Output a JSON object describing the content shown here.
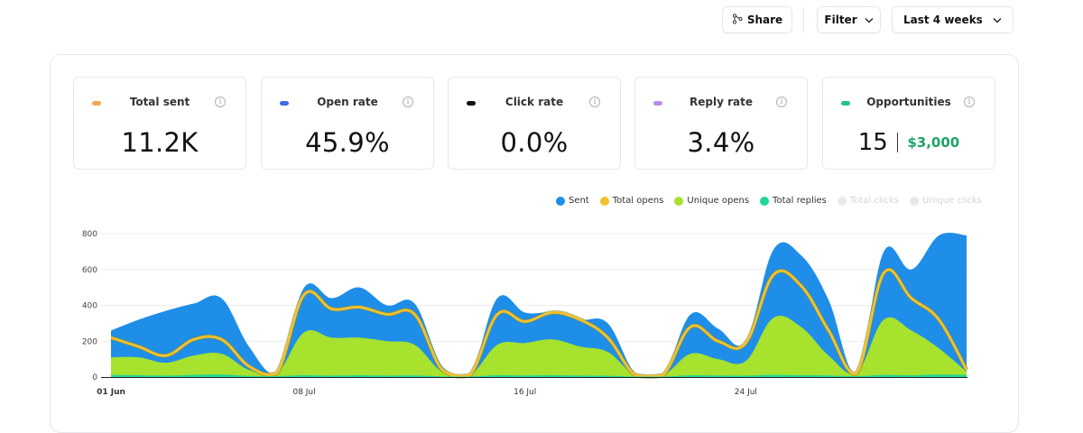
{
  "toolbar": {
    "share_label": "Share",
    "filter_label": "Filter",
    "range_label": "Last 4 weeks"
  },
  "cards": [
    {
      "label": "Total sent",
      "value": "11.2K",
      "color": "#f0a94a"
    },
    {
      "label": "Open rate",
      "value": "45.9%",
      "color": "#3b6fe0"
    },
    {
      "label": "Click rate",
      "value": "0.0%",
      "color": "#111111"
    },
    {
      "label": "Reply rate",
      "value": "3.4%",
      "color": "#b98ee8"
    },
    {
      "label": "Opportunities",
      "value": "15",
      "money": "$3,000",
      "color": "#26c281"
    }
  ],
  "legend": [
    {
      "label": "Sent",
      "color": "#1f8ee8",
      "active": true
    },
    {
      "label": "Total opens",
      "color": "#f2c12e",
      "active": true
    },
    {
      "label": "Unique opens",
      "color": "#a6e22e",
      "active": true
    },
    {
      "label": "Total replies",
      "color": "#1fd694",
      "active": true
    },
    {
      "label": "Total clicks",
      "color": "#e8e8ea",
      "active": false
    },
    {
      "label": "Unique clicks",
      "color": "#e8e8ea",
      "active": false
    }
  ],
  "chart_data": {
    "type": "area",
    "ylim": [
      0,
      800
    ],
    "yticks": [
      0,
      200,
      400,
      600,
      800
    ],
    "grid": true,
    "legend_position": "top-right",
    "xticks": [
      {
        "day": 0,
        "label": "01 Jun",
        "bold": true
      },
      {
        "day": 7,
        "label": "08 Jul",
        "bold": false
      },
      {
        "day": 15,
        "label": "16 Jul",
        "bold": false
      },
      {
        "day": 23,
        "label": "24 Jul",
        "bold": false
      }
    ],
    "series": [
      {
        "name": "Sent",
        "color": "#1f8ee8",
        "values": [
          260,
          320,
          370,
          410,
          440,
          170,
          20,
          500,
          440,
          500,
          400,
          410,
          60,
          10,
          440,
          360,
          360,
          320,
          300,
          20,
          10,
          350,
          270,
          200,
          710,
          680,
          430,
          20,
          700,
          600,
          790,
          790
        ]
      },
      {
        "name": "Total opens",
        "color": "#f2c12e",
        "values": [
          220,
          170,
          120,
          210,
          210,
          60,
          20,
          460,
          380,
          390,
          350,
          350,
          40,
          10,
          350,
          310,
          360,
          320,
          220,
          10,
          10,
          280,
          200,
          190,
          570,
          510,
          260,
          20,
          580,
          440,
          320,
          40
        ]
      },
      {
        "name": "Unique opens",
        "color": "#a6e22e",
        "values": [
          110,
          110,
          80,
          120,
          130,
          40,
          20,
          250,
          220,
          220,
          200,
          180,
          30,
          10,
          180,
          190,
          210,
          170,
          140,
          10,
          10,
          130,
          100,
          90,
          330,
          280,
          120,
          20,
          320,
          260,
          160,
          30
        ]
      },
      {
        "name": "Total replies",
        "color": "#1fd694",
        "values": [
          12,
          10,
          8,
          12,
          14,
          6,
          5,
          10,
          8,
          10,
          8,
          9,
          4,
          3,
          10,
          9,
          10,
          8,
          7,
          3,
          3,
          10,
          9,
          8,
          12,
          10,
          9,
          5,
          12,
          10,
          14,
          12
        ]
      }
    ]
  }
}
